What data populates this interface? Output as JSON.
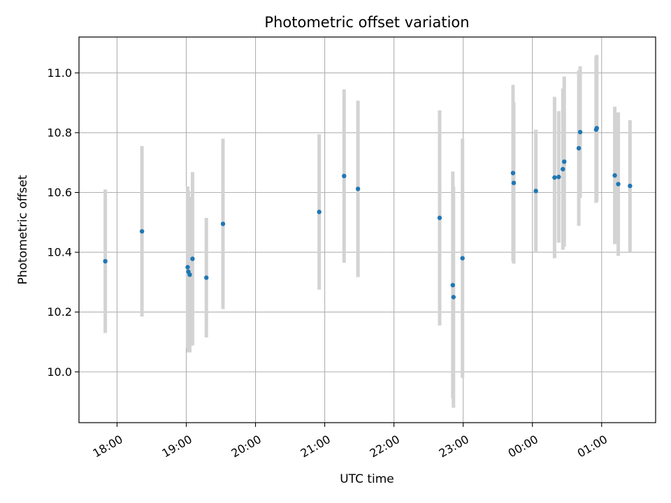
{
  "chart_data": {
    "type": "scatter",
    "title": "Photometric offset variation",
    "xlabel": "UTC time",
    "ylabel": "Photometric offset",
    "grid": true,
    "x_unit": "hours since 18:00 UTC (start day)",
    "xlim": [
      -0.55,
      7.78
    ],
    "ylim": [
      9.83,
      11.12
    ],
    "x_ticks": [
      {
        "value": 0,
        "label": "18:00"
      },
      {
        "value": 1,
        "label": "19:00"
      },
      {
        "value": 2,
        "label": "20:00"
      },
      {
        "value": 3,
        "label": "21:00"
      },
      {
        "value": 4,
        "label": "22:00"
      },
      {
        "value": 5,
        "label": "23:00"
      },
      {
        "value": 6,
        "label": "00:00"
      },
      {
        "value": 7,
        "label": "01:00"
      }
    ],
    "y_ticks": [
      {
        "value": 10.0,
        "label": "10.0"
      },
      {
        "value": 10.2,
        "label": "10.2"
      },
      {
        "value": 10.4,
        "label": "10.4"
      },
      {
        "value": 10.6,
        "label": "10.6"
      },
      {
        "value": 10.8,
        "label": "10.8"
      },
      {
        "value": 11.0,
        "label": "11.0"
      }
    ],
    "colors": {
      "point": "#1f77b4",
      "errorbar": "#d3d3d3",
      "grid": "#b0b0b0",
      "axes": "#000000"
    },
    "series": [
      {
        "name": "Photometric offset",
        "points": [
          {
            "x": -0.17,
            "y": 10.37,
            "err": 0.24
          },
          {
            "x": 0.36,
            "y": 10.47,
            "err": 0.285
          },
          {
            "x": 1.02,
            "y": 10.35,
            "err": 0.27
          },
          {
            "x": 1.03,
            "y": 10.335,
            "err": 0.27
          },
          {
            "x": 1.05,
            "y": 10.325,
            "err": 0.26
          },
          {
            "x": 1.09,
            "y": 10.378,
            "err": 0.29
          },
          {
            "x": 1.29,
            "y": 10.315,
            "err": 0.2
          },
          {
            "x": 1.53,
            "y": 10.495,
            "err": 0.285
          },
          {
            "x": 2.92,
            "y": 10.535,
            "err": 0.26
          },
          {
            "x": 3.28,
            "y": 10.655,
            "err": 0.29
          },
          {
            "x": 3.48,
            "y": 10.612,
            "err": 0.295
          },
          {
            "x": 4.66,
            "y": 10.515,
            "err": 0.36
          },
          {
            "x": 4.85,
            "y": 10.29,
            "err": 0.38
          },
          {
            "x": 4.86,
            "y": 10.25,
            "err": 0.37
          },
          {
            "x": 4.99,
            "y": 10.38,
            "err": 0.4
          },
          {
            "x": 5.72,
            "y": 10.665,
            "err": 0.295
          },
          {
            "x": 5.73,
            "y": 10.632,
            "err": 0.27
          },
          {
            "x": 6.05,
            "y": 10.605,
            "err": 0.205
          },
          {
            "x": 6.32,
            "y": 10.65,
            "err": 0.27
          },
          {
            "x": 6.38,
            "y": 10.652,
            "err": 0.22
          },
          {
            "x": 6.44,
            "y": 10.678,
            "err": 0.27
          },
          {
            "x": 6.46,
            "y": 10.703,
            "err": 0.285
          },
          {
            "x": 6.67,
            "y": 10.748,
            "err": 0.26
          },
          {
            "x": 6.69,
            "y": 10.802,
            "err": 0.22
          },
          {
            "x": 6.92,
            "y": 10.81,
            "err": 0.245
          },
          {
            "x": 6.93,
            "y": 10.815,
            "err": 0.245
          },
          {
            "x": 7.19,
            "y": 10.657,
            "err": 0.23
          },
          {
            "x": 7.24,
            "y": 10.628,
            "err": 0.24
          },
          {
            "x": 7.41,
            "y": 10.622,
            "err": 0.22
          }
        ]
      }
    ]
  }
}
